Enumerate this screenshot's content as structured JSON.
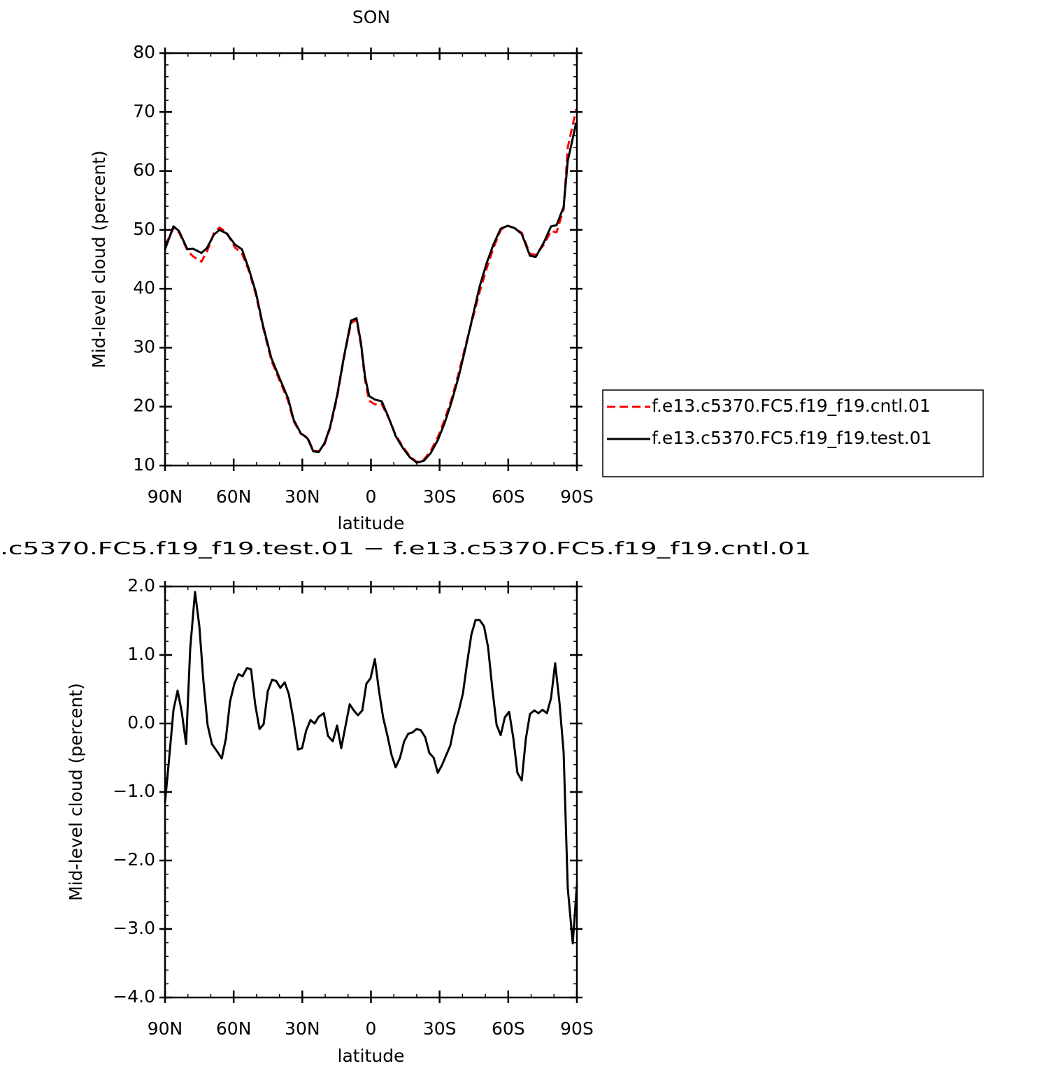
{
  "chart_data": [
    {
      "type": "line",
      "title": "SON",
      "x_label": "latitude",
      "y_label": "Mid-level cloud (percent)",
      "x": [
        90.0,
        86.3,
        83.9,
        80.2,
        77.8,
        74.1,
        71.7,
        68.6,
        66.2,
        63.1,
        59.4,
        56.4,
        53.3,
        50.3,
        47.2,
        43.5,
        39.9,
        36.2,
        33.8,
        30.7,
        27.7,
        25.2,
        22.8,
        20.3,
        17.9,
        14.8,
        11.8,
        8.7,
        6.3,
        4.4,
        2.6,
        0.8,
        -1.7,
        -4.7,
        -7.8,
        -10.8,
        -13.9,
        -17.0,
        -20.0,
        -23.1,
        -26.1,
        -29.2,
        -32.2,
        -35.3,
        -38.4,
        -41.4,
        -44.5,
        -47.5,
        -50.6,
        -53.6,
        -56.7,
        -59.7,
        -62.8,
        -65.9,
        -69.5,
        -72.0,
        -75.6,
        -78.7,
        -81.1,
        -84.2,
        -86.0,
        -89.7
      ],
      "series": [
        {
          "name": "f.e13.c5370.FC5.f19_f19.cntl.01",
          "color": "#ff0000",
          "dash": true,
          "values": [
            47.3,
            50.3,
            49.6,
            46.5,
            45.5,
            44.6,
            46.3,
            49.5,
            50.4,
            49.6,
            47.0,
            46.0,
            43.0,
            39.0,
            33.5,
            27.8,
            24.4,
            21.0,
            17.5,
            15.4,
            14.8,
            12.5,
            12.4,
            13.6,
            16.3,
            21.5,
            28.3,
            34.2,
            34.7,
            30.5,
            24.5,
            21.0,
            20.4,
            20.4,
            18.0,
            15.2,
            13.2,
            11.6,
            10.6,
            11.0,
            12.5,
            14.8,
            17.8,
            21.4,
            25.8,
            30.5,
            35.0,
            39.5,
            43.5,
            47.0,
            50.0,
            50.7,
            50.3,
            49.5,
            45.9,
            45.8,
            47.5,
            49.8,
            49.6,
            53.5,
            64.0,
            70.5
          ]
        },
        {
          "name": "f.e13.c5370.FC5.f19_f19.test.01",
          "color": "#000000",
          "dash": false,
          "values": [
            46.7,
            50.6,
            49.8,
            46.7,
            46.8,
            46.1,
            46.9,
            49.2,
            50.0,
            49.4,
            47.5,
            46.7,
            43.3,
            39.4,
            33.8,
            28.2,
            24.8,
            21.4,
            17.8,
            15.5,
            14.6,
            12.4,
            12.3,
            13.8,
            16.5,
            21.9,
            28.5,
            34.6,
            35.0,
            30.9,
            25.1,
            21.8,
            21.2,
            20.9,
            18.1,
            15.0,
            13.0,
            11.4,
            10.5,
            10.8,
            12.1,
            14.3,
            17.2,
            20.9,
            25.2,
            30.1,
            35.4,
            40.4,
            44.4,
            47.6,
            50.2,
            50.7,
            50.3,
            49.3,
            45.6,
            45.4,
            47.9,
            50.6,
            50.8,
            53.9,
            61.7,
            68.2
          ]
        }
      ],
      "xlim": [
        90,
        -90
      ],
      "xticks": [
        {
          "value": 90,
          "label": "90N"
        },
        {
          "value": 60,
          "label": "60N"
        },
        {
          "value": 30,
          "label": "30N"
        },
        0,
        {
          "value": -30,
          "label": "30S"
        },
        {
          "value": -60,
          "label": "60S"
        },
        {
          "value": -90,
          "label": "90S"
        }
      ],
      "ylim": [
        10,
        80
      ],
      "yticks": [
        10,
        20,
        30,
        40,
        50,
        60,
        70,
        80
      ],
      "legend": "right"
    },
    {
      "type": "line",
      "title": ".c5370.FC5.f19_f19.test.01 − f.e13.c5370.FC5.f19_f19.cntl.01",
      "x_label": "latitude",
      "y_label": "Mid-level cloud (percent)",
      "x": [
        90.0,
        88.2,
        86.3,
        84.5,
        82.7,
        80.8,
        79.0,
        76.9,
        75.0,
        73.2,
        71.4,
        69.5,
        67.4,
        65.2,
        63.4,
        61.6,
        59.7,
        57.9,
        56.1,
        54.2,
        52.4,
        50.6,
        48.7,
        46.9,
        45.1,
        43.2,
        41.4,
        39.6,
        37.7,
        35.9,
        34.1,
        31.9,
        30.1,
        28.3,
        26.4,
        24.6,
        22.8,
        20.6,
        18.8,
        16.7,
        14.8,
        13.0,
        11.2,
        9.3,
        7.5,
        5.7,
        3.8,
        2.0,
        0.2,
        -1.7,
        -3.5,
        -5.3,
        -7.2,
        -9.0,
        -10.8,
        -12.7,
        -14.5,
        -16.3,
        -18.2,
        -20.0,
        -21.8,
        -23.7,
        -25.5,
        -27.4,
        -29.2,
        -31.0,
        -32.9,
        -34.7,
        -36.5,
        -38.4,
        -40.2,
        -42.0,
        -43.9,
        -45.7,
        -47.5,
        -49.4,
        -51.2,
        -53.0,
        -54.9,
        -56.7,
        -58.5,
        -60.4,
        -62.2,
        -64.0,
        -65.9,
        -67.7,
        -69.5,
        -71.4,
        -73.2,
        -75.0,
        -76.9,
        -78.7,
        -80.5,
        -82.4,
        -84.2,
        -86.0,
        -88.2,
        -90.0
      ],
      "values": [
        -1.15,
        -0.51,
        0.2,
        0.48,
        0.17,
        -0.3,
        1.09,
        1.92,
        1.42,
        0.61,
        -0.02,
        -0.3,
        -0.4,
        -0.51,
        -0.22,
        0.32,
        0.58,
        0.72,
        0.69,
        0.81,
        0.79,
        0.28,
        -0.08,
        -0.01,
        0.47,
        0.64,
        0.62,
        0.52,
        0.6,
        0.43,
        0.1,
        -0.38,
        -0.36,
        -0.1,
        0.05,
        0.0,
        0.1,
        0.15,
        -0.18,
        -0.26,
        -0.03,
        -0.36,
        -0.05,
        0.28,
        0.19,
        0.12,
        0.19,
        0.58,
        0.66,
        0.94,
        0.48,
        0.09,
        -0.18,
        -0.46,
        -0.64,
        -0.5,
        -0.26,
        -0.15,
        -0.13,
        -0.08,
        -0.1,
        -0.2,
        -0.43,
        -0.5,
        -0.72,
        -0.61,
        -0.46,
        -0.32,
        -0.02,
        0.19,
        0.44,
        0.88,
        1.3,
        1.51,
        1.51,
        1.42,
        1.11,
        0.52,
        -0.02,
        -0.17,
        0.09,
        0.17,
        -0.21,
        -0.72,
        -0.83,
        -0.22,
        0.14,
        0.19,
        0.15,
        0.2,
        0.15,
        0.37,
        0.88,
        0.3,
        -0.42,
        -2.4,
        -3.21,
        -2.35
      ],
      "color": "#000000",
      "xlim": [
        90,
        -90
      ],
      "xticks": [
        {
          "value": 90,
          "label": "90N"
        },
        {
          "value": 60,
          "label": "60N"
        },
        {
          "value": 30,
          "label": "30N"
        },
        0,
        {
          "value": -30,
          "label": "30S"
        },
        {
          "value": -60,
          "label": "60S"
        },
        {
          "value": -90,
          "label": "90S"
        }
      ],
      "ylim": [
        -4,
        2
      ],
      "yticks": [
        {
          "value": -4,
          "label": "−4.0"
        },
        {
          "value": -3,
          "label": "−3.0"
        },
        {
          "value": -2,
          "label": "−2.0"
        },
        {
          "value": -1,
          "label": "−1.0"
        },
        {
          "value": 0,
          "label": "0.0"
        },
        {
          "value": 1,
          "label": "1.0"
        },
        {
          "value": 2,
          "label": "2.0"
        }
      ]
    }
  ]
}
